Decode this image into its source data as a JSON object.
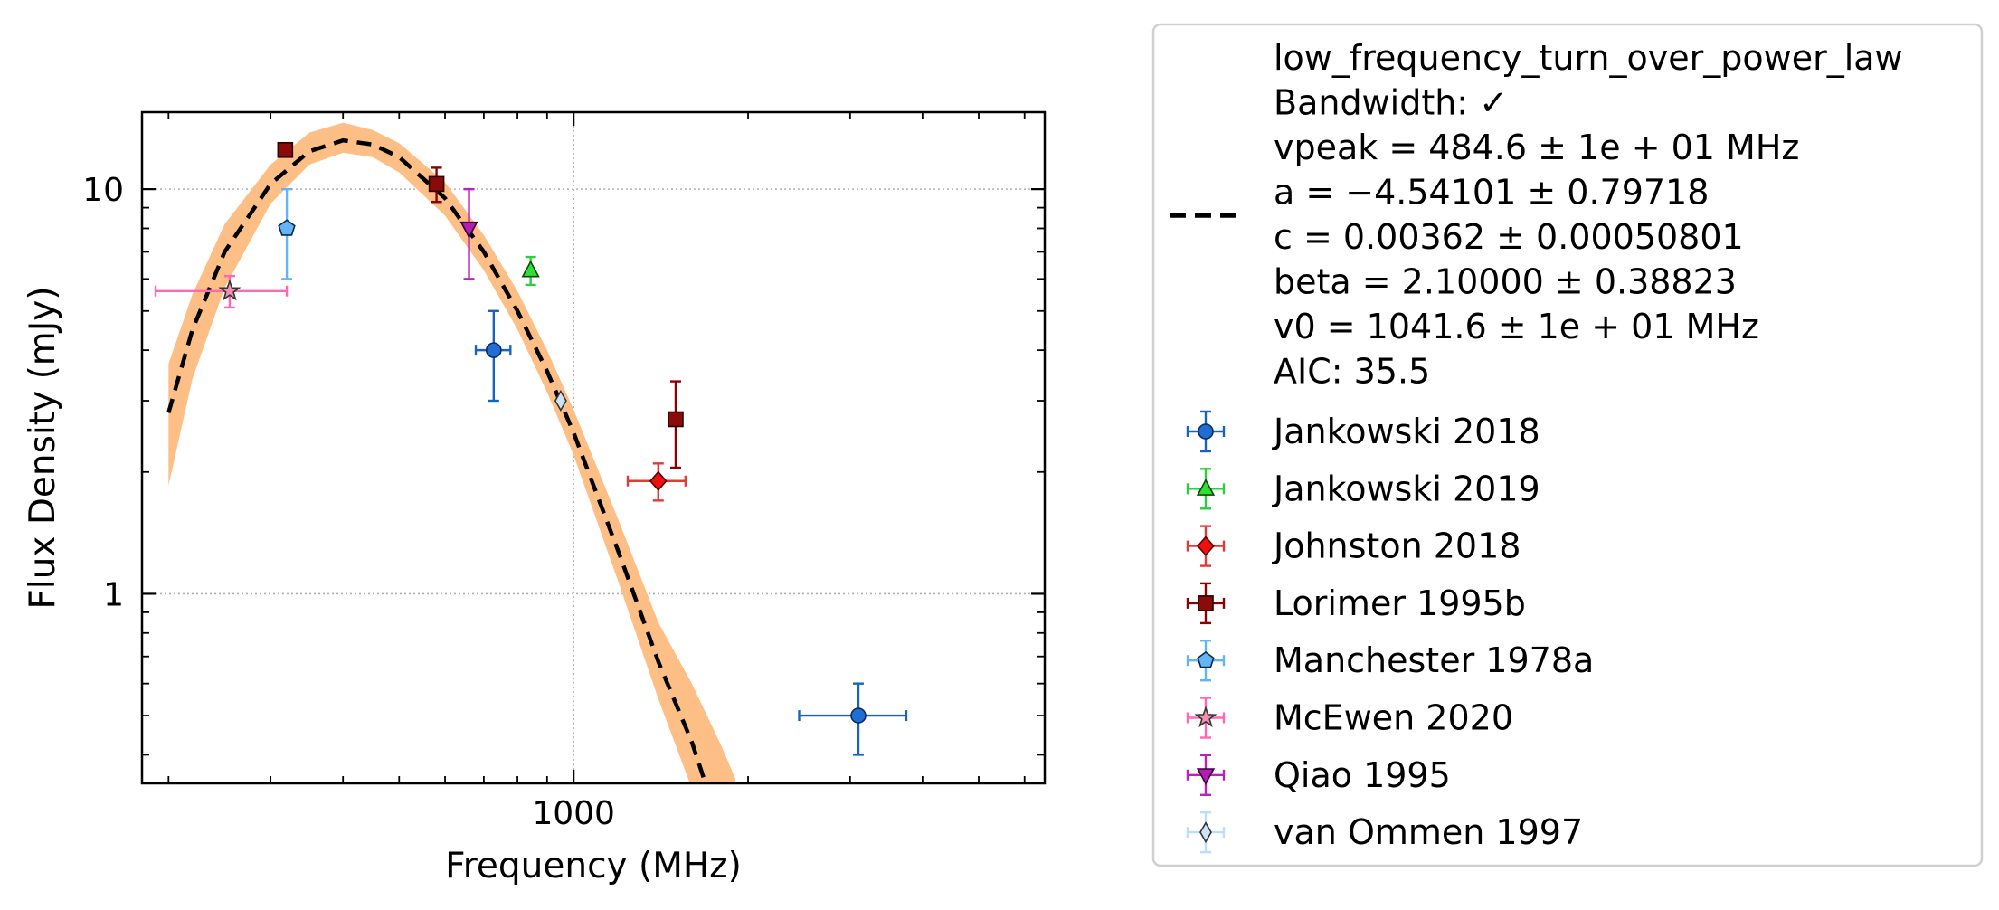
{
  "chart_data": {
    "type": "scatter",
    "xlabel": "Frequency (MHz)",
    "ylabel": "Flux Density (mJy)",
    "xscale": "log",
    "yscale": "log",
    "xlim": [
      180,
      6500
    ],
    "ylim": [
      0.34,
      15.5
    ],
    "x_ticks": [
      {
        "value": 1000,
        "label": "1000"
      }
    ],
    "y_ticks": [
      {
        "value": 1,
        "label": "1"
      },
      {
        "value": 10,
        "label": "10"
      }
    ],
    "grid": true,
    "legend_position": "outside-right",
    "fit": {
      "name": "low_frequency_turn_over_power_law",
      "label_lines": [
        "low_frequency_turn_over_power_law",
        "Bandwidth: ✓",
        "vpeak = 484.6 ± 1e + 01 MHz",
        "a = −4.54101 ± 0.79718",
        "c = 0.00362 ± 0.00050801",
        "beta = 2.10000 ± 0.38823",
        "v0 = 1041.6 ± 1e + 01 MHz",
        "AIC: 35.5"
      ],
      "line_color": "#000000",
      "band_color": "#fdbf85",
      "curve": [
        {
          "x": 200,
          "y": 2.8
        },
        {
          "x": 220,
          "y": 4.5
        },
        {
          "x": 250,
          "y": 7.0
        },
        {
          "x": 300,
          "y": 10.3
        },
        {
          "x": 350,
          "y": 12.4
        },
        {
          "x": 400,
          "y": 13.2
        },
        {
          "x": 450,
          "y": 12.9
        },
        {
          "x": 500,
          "y": 12.0
        },
        {
          "x": 600,
          "y": 9.5
        },
        {
          "x": 700,
          "y": 7.0
        },
        {
          "x": 800,
          "y": 5.0
        },
        {
          "x": 900,
          "y": 3.55
        },
        {
          "x": 1000,
          "y": 2.5
        },
        {
          "x": 1200,
          "y": 1.25
        },
        {
          "x": 1400,
          "y": 0.68
        },
        {
          "x": 1600,
          "y": 0.43
        },
        {
          "x": 1700,
          "y": 0.33
        }
      ],
      "band": [
        {
          "x": 200,
          "lo": 1.85,
          "hi": 3.7
        },
        {
          "x": 220,
          "lo": 3.4,
          "hi": 5.5
        },
        {
          "x": 250,
          "lo": 5.7,
          "hi": 8.2
        },
        {
          "x": 300,
          "lo": 9.2,
          "hi": 11.5
        },
        {
          "x": 350,
          "lo": 11.5,
          "hi": 13.8
        },
        {
          "x": 400,
          "lo": 12.3,
          "hi": 14.6
        },
        {
          "x": 450,
          "lo": 12.0,
          "hi": 14.0
        },
        {
          "x": 500,
          "lo": 11.0,
          "hi": 13.0
        },
        {
          "x": 600,
          "lo": 8.6,
          "hi": 10.4
        },
        {
          "x": 700,
          "lo": 6.3,
          "hi": 7.7
        },
        {
          "x": 800,
          "lo": 4.5,
          "hi": 5.6
        },
        {
          "x": 900,
          "lo": 3.15,
          "hi": 4.0
        },
        {
          "x": 1000,
          "lo": 2.2,
          "hi": 2.85
        },
        {
          "x": 1200,
          "lo": 1.05,
          "hi": 1.5
        },
        {
          "x": 1400,
          "lo": 0.55,
          "hi": 0.85
        },
        {
          "x": 1600,
          "lo": 0.33,
          "hi": 0.6
        },
        {
          "x": 1800,
          "lo": 0.33,
          "hi": 0.42
        },
        {
          "x": 1900,
          "lo": 0.33,
          "hi": 0.35
        }
      ]
    },
    "series": [
      {
        "name": "Jankowski 2018",
        "marker": "circle",
        "color": "#1f6fd1",
        "edge": "#0a2a6b",
        "bar": "#1565c0",
        "points": [
          {
            "x": 728,
            "y": 4.0,
            "xerr": 50,
            "yerr": [
              1.0,
              1.0
            ]
          },
          {
            "x": 3100,
            "y": 0.5,
            "xerr": [
              650,
              650
            ],
            "yerr": [
              0.1,
              0.1
            ]
          }
        ]
      },
      {
        "name": "Jankowski 2019",
        "marker": "triangle-up",
        "color": "#33dd33",
        "edge": "#0a4a0a",
        "bar": "#2ecc40",
        "points": [
          {
            "x": 843,
            "y": 6.3,
            "xerr": 0,
            "yerr": [
              0.5,
              0.5
            ]
          }
        ]
      },
      {
        "name": "Johnston 2018",
        "marker": "diamond",
        "color": "#ee1111",
        "edge": "#5a0000",
        "bar": "#e53935",
        "points": [
          {
            "x": 1400,
            "y": 1.9,
            "xerr": [
              160,
              160
            ],
            "yerr": [
              0.2,
              0.2
            ]
          }
        ]
      },
      {
        "name": "Lorimer 1995b",
        "marker": "square",
        "color": "#8b0a0a",
        "edge": "#2a0000",
        "bar": "#8b0000",
        "points": [
          {
            "x": 318,
            "y": 12.5,
            "xerr": 0,
            "yerr": [
              0,
              0
            ]
          },
          {
            "x": 580,
            "y": 10.3,
            "xerr": 0,
            "yerr": [
              1.0,
              1.0
            ]
          },
          {
            "x": 1500,
            "y": 2.7,
            "xerr": 0,
            "yerr": [
              0.65,
              0.65
            ]
          }
        ]
      },
      {
        "name": "Manchester 1978a",
        "marker": "pentagon",
        "color": "#64b5f6",
        "edge": "#0a2a4a",
        "bar": "#64b5f6",
        "points": [
          {
            "x": 320,
            "y": 8.0,
            "xerr": 0,
            "yerr": [
              2.0,
              2.0
            ]
          }
        ]
      },
      {
        "name": "McEwen 2020",
        "marker": "star",
        "color": "#f48fb1",
        "edge": "#333333",
        "bar": "#ff69b4",
        "points": [
          {
            "x": 255,
            "y": 5.6,
            "xerr": [
              65,
              65
            ],
            "yerr": [
              0.5,
              0.5
            ]
          }
        ]
      },
      {
        "name": "Qiao 1995",
        "marker": "triangle-down",
        "color": "#b21fb2",
        "edge": "#3a003a",
        "bar": "#bb22bb",
        "points": [
          {
            "x": 660,
            "y": 8.0,
            "xerr": 0,
            "yerr": [
              2.0,
              2.0
            ]
          }
        ]
      },
      {
        "name": "van Ommen 1997",
        "marker": "thin-diamond",
        "color": "#cfe3f7",
        "edge": "#333333",
        "bar": "#bbdefb",
        "points": [
          {
            "x": 950,
            "y": 3.0,
            "xerr": 0,
            "yerr": [
              0,
              0
            ]
          }
        ]
      }
    ]
  }
}
